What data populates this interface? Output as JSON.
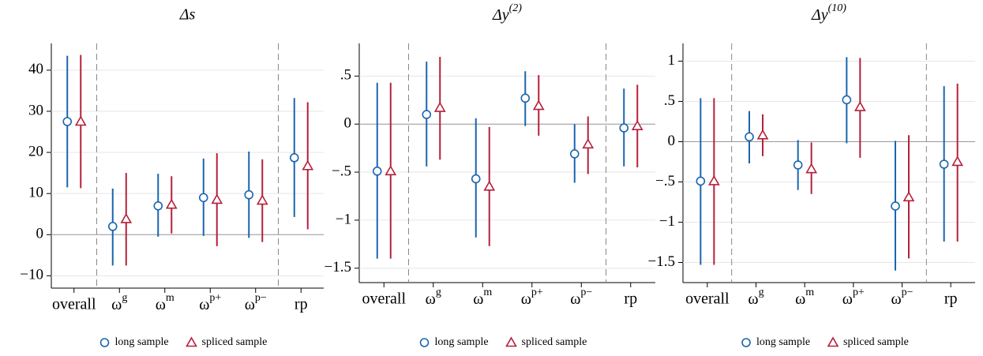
{
  "chart_data": [
    {
      "type": "errorbar",
      "title": "Δs",
      "categories": [
        "overall",
        {
          "label": "ω",
          "sup": "g"
        },
        {
          "label": "ω",
          "sup": "m"
        },
        {
          "label": "ω",
          "sup": "p+"
        },
        {
          "label": "ω",
          "sup": "p−"
        },
        "rp"
      ],
      "ylim": [
        -13,
        46.5
      ],
      "yticks": [
        {
          "value": -10,
          "label": "−10"
        },
        0,
        10,
        20,
        30,
        40
      ],
      "yline": 0,
      "grid": true,
      "series": [
        {
          "name": "long sample",
          "color": "#1a65b0",
          "marker": "circle",
          "values": [
            27.5,
            2,
            7,
            9,
            9.7,
            18.7
          ],
          "ci_low": [
            11.5,
            -7.5,
            -0.5,
            -0.3,
            -0.8,
            4.3
          ],
          "ci_high": [
            43.5,
            11.2,
            14.8,
            18.5,
            20.2,
            33.2
          ]
        },
        {
          "name": "spliced sample",
          "color": "#b5203a",
          "marker": "triangle",
          "values": [
            27.5,
            3.8,
            7.3,
            8.5,
            8.3,
            16.7
          ],
          "ci_low": [
            11.3,
            -7.5,
            0.3,
            -2.8,
            -1.8,
            1.3
          ],
          "ci_high": [
            43.7,
            15,
            14.2,
            19.8,
            18.3,
            32.2
          ]
        }
      ]
    },
    {
      "type": "errorbar",
      "title": {
        "label": "Δy",
        "sup": "(2)"
      },
      "categories": [
        "overall",
        {
          "label": "ω",
          "sup": "g"
        },
        {
          "label": "ω",
          "sup": "m"
        },
        {
          "label": "ω",
          "sup": "p+"
        },
        {
          "label": "ω",
          "sup": "p−"
        },
        "rp"
      ],
      "ylim": [
        -1.65,
        0.84
      ],
      "yticks": [
        {
          "value": -1.5,
          "label": "−1.5"
        },
        {
          "value": -1,
          "label": "−1"
        },
        {
          "value": -0.5,
          "label": "−.5"
        },
        0,
        {
          "value": 0.5,
          "label": ".5"
        }
      ],
      "yline": 0,
      "grid": true,
      "series": [
        {
          "name": "long sample",
          "color": "#1a65b0",
          "marker": "circle",
          "values": [
            -0.49,
            0.1,
            -0.57,
            0.27,
            -0.31,
            -0.04
          ],
          "ci_low": [
            -1.4,
            -0.44,
            -1.18,
            -0.02,
            -0.61,
            -0.44
          ],
          "ci_high": [
            0.43,
            0.65,
            0.06,
            0.55,
            0,
            0.37
          ]
        },
        {
          "name": "spliced sample",
          "color": "#b5203a",
          "marker": "triangle",
          "values": [
            -0.49,
            0.17,
            -0.65,
            0.19,
            -0.21,
            -0.02
          ],
          "ci_low": [
            -1.4,
            -0.37,
            -1.27,
            -0.12,
            -0.52,
            -0.45
          ],
          "ci_high": [
            0.43,
            0.7,
            -0.03,
            0.51,
            0.08,
            0.41
          ]
        }
      ]
    },
    {
      "type": "errorbar",
      "title": {
        "label": "Δy",
        "sup": "(10)"
      },
      "categories": [
        "overall",
        {
          "label": "ω",
          "sup": "g"
        },
        {
          "label": "ω",
          "sup": "m"
        },
        {
          "label": "ω",
          "sup": "p+"
        },
        {
          "label": "ω",
          "sup": "p−"
        },
        "rp"
      ],
      "ylim": [
        -1.75,
        1.22
      ],
      "yticks": [
        {
          "value": -1.5,
          "label": "−1.5"
        },
        {
          "value": -1,
          "label": "−1"
        },
        {
          "value": -0.5,
          "label": "−.5"
        },
        0,
        {
          "value": 0.5,
          "label": ".5"
        },
        1
      ],
      "yline": 0,
      "grid": true,
      "series": [
        {
          "name": "long sample",
          "color": "#1a65b0",
          "marker": "circle",
          "values": [
            -0.49,
            0.06,
            -0.29,
            0.52,
            -0.8,
            -0.28
          ],
          "ci_low": [
            -1.53,
            -0.27,
            -0.6,
            -0.02,
            -1.6,
            -1.24
          ],
          "ci_high": [
            0.54,
            0.38,
            0.02,
            1.05,
            0.01,
            0.69
          ]
        },
        {
          "name": "spliced sample",
          "color": "#b5203a",
          "marker": "triangle",
          "values": [
            -0.49,
            0.08,
            -0.34,
            0.43,
            -0.69,
            -0.25
          ],
          "ci_low": [
            -1.53,
            -0.18,
            -0.65,
            -0.2,
            -1.45,
            -1.24
          ],
          "ci_high": [
            0.54,
            0.34,
            -0.01,
            1.04,
            0.08,
            0.72
          ]
        }
      ]
    }
  ]
}
